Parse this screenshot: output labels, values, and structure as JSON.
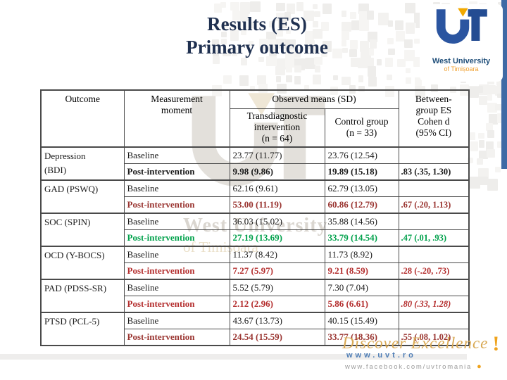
{
  "title": {
    "line1": "Results (ES)",
    "line2": "Primary outcome"
  },
  "logo": {
    "org_line1": "West University",
    "org_line2": "of Timișoara"
  },
  "watermark": {
    "line1": "West University",
    "line2": "of Timișoara"
  },
  "table": {
    "col_outcome": "Outcome",
    "col_measurement_lines": [
      "Measurement",
      "moment"
    ],
    "col_observed": "Observed means (SD)",
    "col_group1_name": "Transdiagnostic intervention",
    "col_group1_n": "(n = 64)",
    "col_group2_name": "Control group",
    "col_group2_n": "(n = 33)",
    "col_es_lines": [
      "Between-",
      "group ES",
      "Cohen d",
      "(95% CI)"
    ],
    "label_baseline": "Baseline",
    "label_post": "Post-intervention",
    "groups": [
      {
        "outcome": "Depression\n(BDI)",
        "baseline_t": "23.77 (11.77)",
        "baseline_c": "23.76 (12.54)",
        "post_t": "9.98 (9.86)",
        "post_c": "19.89 (15.18)",
        "es": ".83 (.35, 1.30)",
        "post_color": "#1a1a1a",
        "es_italic": false
      },
      {
        "outcome": "GAD (PSWQ)",
        "baseline_t": "62.16 (9.61)",
        "baseline_c": "62.79 (13.05)",
        "post_t": "53.00 (11.19)",
        "post_c": "60.86 (12.79)",
        "es": ".67 (.20, 1.13)",
        "post_color": "#9a3531",
        "es_italic": false
      },
      {
        "outcome": "SOC (SPIN)",
        "baseline_t": "36.03 (15.02)",
        "baseline_c": "35.88 (14.56)",
        "post_t": "27.19 (13.69)",
        "post_c": "33.79 (14.54)",
        "es": ".47 (.01, .93)",
        "post_color": "#00a14b",
        "es_italic": false
      },
      {
        "outcome": "OCD (Y-BOCS)",
        "baseline_t": "11.37 (8.42)",
        "baseline_c": "11.73 (8.92)",
        "post_t": "7.27 (5.97)",
        "post_c": "9.21 (8.59)",
        "es": ".28 (-.20, .73)",
        "post_color": "#b42e2e",
        "es_italic": false
      },
      {
        "outcome": "PAD (PDSS-SR)",
        "baseline_t": "5.52 (5.79)",
        "baseline_c": "7.30 (7.04)",
        "post_t": "2.12 (2.96)",
        "post_c": "5.86 (6.61)",
        "es": ".80 (.33, 1.28)",
        "post_color": "#b42e2e",
        "es_italic": true
      },
      {
        "outcome": "PTSD (PCL-5)",
        "baseline_t": "43.67 (13.73)",
        "baseline_c": "40.15 (15.49)",
        "post_t": "24.54 (15.59)",
        "post_c": "33.77 (18.36)",
        "es": ".55 (.08, 1.02)",
        "post_color": "#9a3531",
        "es_italic": false
      }
    ]
  },
  "footer": {
    "tagline": "Discover Excellence",
    "bang": "!",
    "url": "www.uvt.ro",
    "facebook": "www.facebook.com/uvtromania",
    "bullet": "●"
  },
  "colors": {
    "title": "#1f3050",
    "accent_blue_bar": "#3f6aa5",
    "table_border": "#4a4a4a",
    "post_black": "#1a1a1a",
    "post_dark_red": "#9a3531",
    "post_red": "#b42e2e",
    "post_green": "#00a14b",
    "gold": "#d9a954",
    "url_blue": "#4e7db5"
  }
}
